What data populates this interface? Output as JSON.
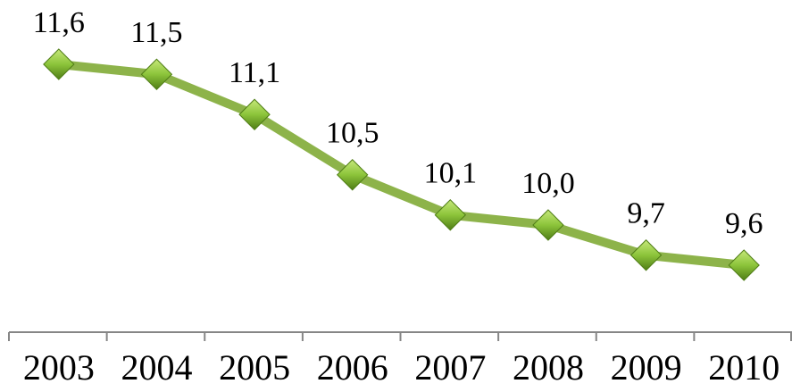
{
  "chart_data": {
    "type": "line",
    "categories": [
      "2003",
      "2004",
      "2005",
      "2006",
      "2007",
      "2008",
      "2009",
      "2010"
    ],
    "values": [
      11.6,
      11.5,
      11.1,
      10.5,
      10.1,
      10.0,
      9.7,
      9.6
    ],
    "value_labels": [
      "11,6",
      "11,5",
      "11,1",
      "10,5",
      "10,1",
      "10,0",
      "9,7",
      "9,6"
    ],
    "color": "#8db34a"
  }
}
